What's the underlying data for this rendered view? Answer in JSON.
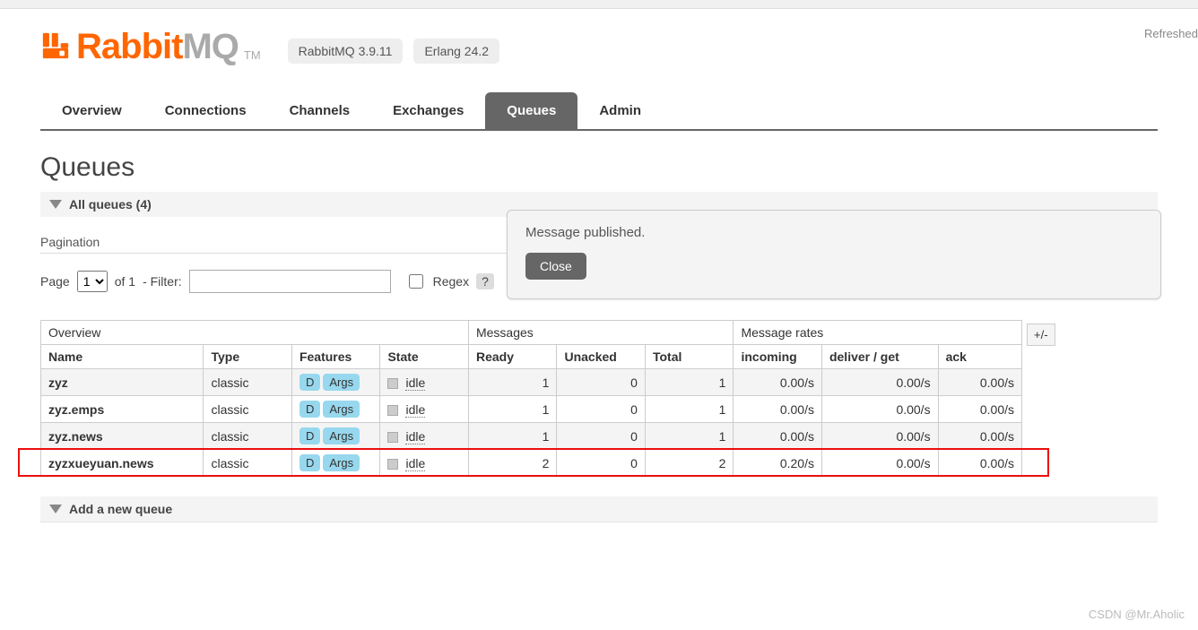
{
  "header": {
    "refreshed_label": "Refreshed",
    "logo_rabbit": "Rabbit",
    "logo_mq": "MQ",
    "logo_tm": "TM",
    "version_rabbit": "RabbitMQ 3.9.11",
    "version_erlang": "Erlang 24.2"
  },
  "tabs": {
    "overview": "Overview",
    "connections": "Connections",
    "channels": "Channels",
    "exchanges": "Exchanges",
    "queues": "Queues",
    "admin": "Admin"
  },
  "page": {
    "title": "Queues",
    "all_queues_label": "All queues (4)",
    "pagination_label": "Pagination",
    "page_label": "Page",
    "page_value": "1",
    "of_label": "of 1",
    "filter_label": "- Filter:",
    "filter_value": "",
    "regex_label": "Regex",
    "regex_q": "?",
    "plusminus": "+/-",
    "add_queue_label": "Add a new queue"
  },
  "popup": {
    "message": "Message published.",
    "close": "Close"
  },
  "table": {
    "group_overview": "Overview",
    "group_messages": "Messages",
    "group_rates": "Message rates",
    "col_name": "Name",
    "col_type": "Type",
    "col_features": "Features",
    "col_state": "State",
    "col_ready": "Ready",
    "col_unacked": "Unacked",
    "col_total": "Total",
    "col_incoming": "incoming",
    "col_deliver": "deliver / get",
    "col_ack": "ack",
    "feat_d": "D",
    "feat_args": "Args",
    "state_idle": "idle",
    "rows": [
      {
        "name": "zyz",
        "type": "classic",
        "ready": "1",
        "unacked": "0",
        "total": "1",
        "incoming": "0.00/s",
        "deliver": "0.00/s",
        "ack": "0.00/s"
      },
      {
        "name": "zyz.emps",
        "type": "classic",
        "ready": "1",
        "unacked": "0",
        "total": "1",
        "incoming": "0.00/s",
        "deliver": "0.00/s",
        "ack": "0.00/s"
      },
      {
        "name": "zyz.news",
        "type": "classic",
        "ready": "1",
        "unacked": "0",
        "total": "1",
        "incoming": "0.00/s",
        "deliver": "0.00/s",
        "ack": "0.00/s"
      },
      {
        "name": "zyzxueyuan.news",
        "type": "classic",
        "ready": "2",
        "unacked": "0",
        "total": "2",
        "incoming": "0.20/s",
        "deliver": "0.00/s",
        "ack": "0.00/s"
      }
    ]
  },
  "watermark": "CSDN @Mr.Aholic"
}
